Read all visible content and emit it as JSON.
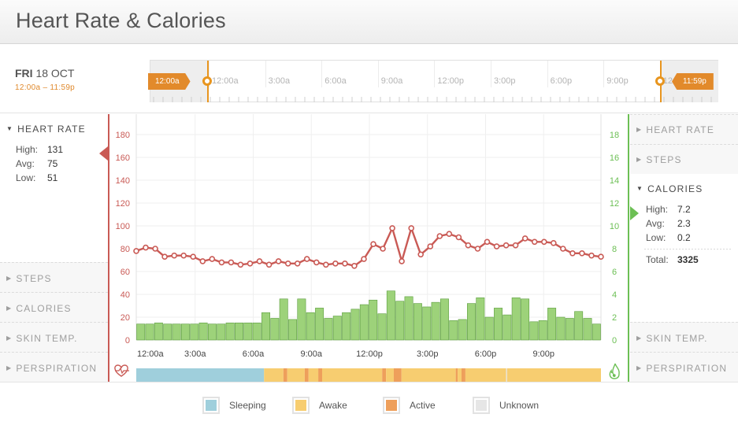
{
  "header": {
    "title": "Heart Rate & Calories"
  },
  "date": {
    "day": "FRI",
    "date": "18 OCT",
    "range": "12:00a – 11:59p"
  },
  "timeline": {
    "labels": [
      "12:00a",
      "3:00a",
      "6:00a",
      "9:00a",
      "12:00p",
      "3:00p",
      "6:00p",
      "9:00p",
      "12"
    ],
    "start_flag": "12:00a",
    "end_flag": "11:59p"
  },
  "left_panel": {
    "heart_rate": {
      "title": "HEART RATE",
      "stats": [
        {
          "label": "High:",
          "value": "131"
        },
        {
          "label": "Avg:",
          "value": "75"
        },
        {
          "label": "Low:",
          "value": "51"
        }
      ]
    },
    "collapsed": [
      "STEPS",
      "CALORIES",
      "SKIN TEMP.",
      "PERSPIRATION"
    ]
  },
  "right_panel": {
    "collapsed_top": [
      "HEART RATE",
      "STEPS"
    ],
    "calories": {
      "title": "CALORIES",
      "stats": [
        {
          "label": "High:",
          "value": "7.2"
        },
        {
          "label": "Avg:",
          "value": "2.3"
        },
        {
          "label": "Low:",
          "value": "0.2"
        }
      ],
      "total_label": "Total:",
      "total_value": "3325"
    },
    "collapsed_bottom": [
      "SKIN TEMP.",
      "PERSPIRATION"
    ]
  },
  "legend": {
    "items": [
      {
        "label": "Sleeping",
        "color": "#9fcfdc"
      },
      {
        "label": "Awake",
        "color": "#f7cd70"
      },
      {
        "label": "Active",
        "color": "#ee9f5b"
      },
      {
        "label": "Unknown",
        "color": "#e6e6e6"
      }
    ]
  },
  "colors": {
    "heart": "#c95a55",
    "calories_bar": "#9dd27a",
    "calories_stroke": "#5c9d3f",
    "accent": "#e28a2b"
  },
  "chart_data": {
    "type": "line+bar",
    "x": [
      "12:00a",
      "3:00a",
      "6:00a",
      "9:00a",
      "12:00p",
      "3:00p",
      "6:00p",
      "9:00p"
    ],
    "left_axis": {
      "label": "Heart rate",
      "ticks": [
        0,
        20,
        40,
        60,
        80,
        100,
        120,
        140,
        160,
        180
      ],
      "ylim": [
        0,
        200
      ]
    },
    "right_axis": {
      "label": "Calories",
      "ticks": [
        0,
        2,
        4,
        6,
        8,
        10,
        12,
        14,
        16,
        18
      ],
      "ylim": [
        0,
        20
      ]
    },
    "heart_rate": {
      "name": "Heart rate",
      "values": [
        78,
        81,
        80,
        73,
        74,
        74,
        73,
        69,
        71,
        68,
        68,
        66,
        67,
        69,
        66,
        69,
        67,
        67,
        71,
        68,
        66,
        67,
        67,
        65,
        71,
        84,
        80,
        98,
        69,
        98,
        75,
        82,
        91,
        93,
        90,
        83,
        80,
        86,
        82,
        83,
        83,
        89,
        86,
        86,
        85,
        80,
        76,
        76,
        74,
        73
      ]
    },
    "calories": {
      "name": "Calories",
      "values": [
        1.4,
        1.4,
        1.5,
        1.4,
        1.4,
        1.4,
        1.4,
        1.5,
        1.4,
        1.4,
        1.5,
        1.5,
        1.5,
        1.5,
        2.4,
        1.9,
        3.6,
        1.8,
        3.6,
        2.4,
        2.8,
        1.9,
        2.1,
        2.4,
        2.7,
        3.1,
        3.5,
        2.3,
        4.3,
        3.4,
        3.8,
        3.2,
        2.9,
        3.3,
        3.6,
        1.7,
        1.8,
        3.2,
        3.7,
        2.0,
        2.8,
        2.2,
        3.7,
        3.6,
        1.6,
        1.7,
        2.8,
        2.0,
        1.9,
        2.5,
        1.9,
        1.4
      ]
    },
    "activity": {
      "states": [
        "sleeping",
        "awake",
        "active",
        "awake",
        "active",
        "awake",
        "active",
        "awake",
        "active",
        "awake",
        "active",
        "awake",
        "active",
        "awake",
        "active",
        "awake",
        "unknown",
        "awake"
      ],
      "ends_hours": [
        6.6,
        7.6,
        7.8,
        8.7,
        8.9,
        9.4,
        9.6,
        12.7,
        12.9,
        13.3,
        13.7,
        16.5,
        16.6,
        16.8,
        17.0,
        19.1,
        19.15,
        24.0
      ]
    }
  }
}
